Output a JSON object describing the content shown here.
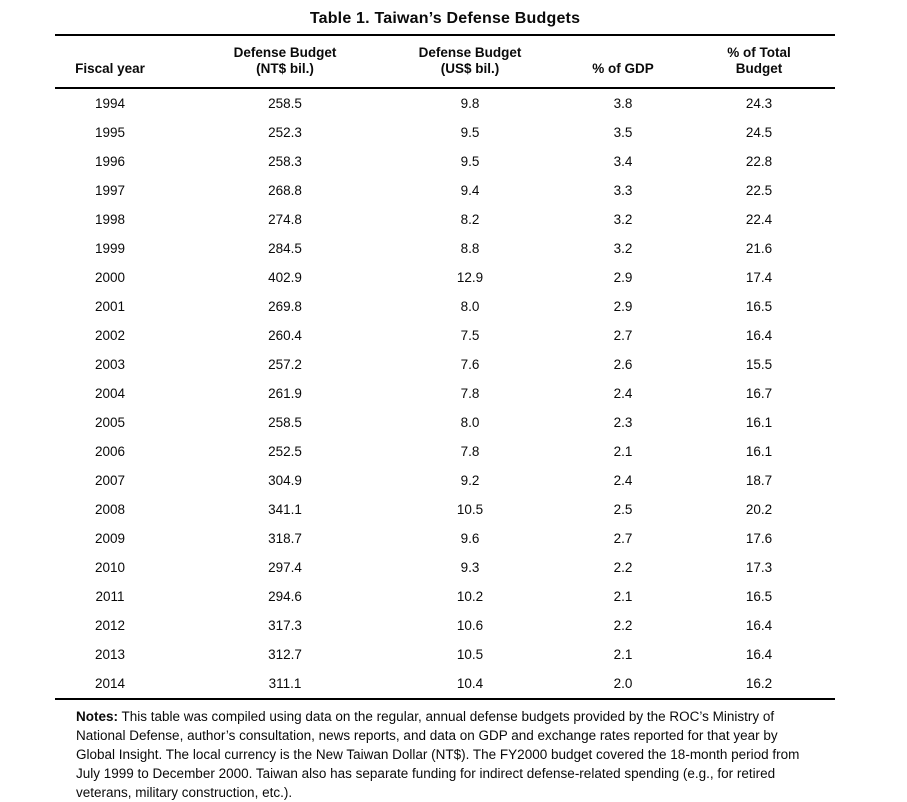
{
  "title": "Table 1. Taiwan’s Defense Budgets",
  "table": {
    "columns": [
      "Fiscal year",
      "Defense Budget\n(NT$ bil.)",
      "Defense Budget\n(US$ bil.)",
      "% of GDP",
      "% of Total\nBudget"
    ],
    "rows": [
      [
        "1994",
        "258.5",
        "9.8",
        "3.8",
        "24.3"
      ],
      [
        "1995",
        "252.3",
        "9.5",
        "3.5",
        "24.5"
      ],
      [
        "1996",
        "258.3",
        "9.5",
        "3.4",
        "22.8"
      ],
      [
        "1997",
        "268.8",
        "9.4",
        "3.3",
        "22.5"
      ],
      [
        "1998",
        "274.8",
        "8.2",
        "3.2",
        "22.4"
      ],
      [
        "1999",
        "284.5",
        "8.8",
        "3.2",
        "21.6"
      ],
      [
        "2000",
        "402.9",
        "12.9",
        "2.9",
        "17.4"
      ],
      [
        "2001",
        "269.8",
        "8.0",
        "2.9",
        "16.5"
      ],
      [
        "2002",
        "260.4",
        "7.5",
        "2.7",
        "16.4"
      ],
      [
        "2003",
        "257.2",
        "7.6",
        "2.6",
        "15.5"
      ],
      [
        "2004",
        "261.9",
        "7.8",
        "2.4",
        "16.7"
      ],
      [
        "2005",
        "258.5",
        "8.0",
        "2.3",
        "16.1"
      ],
      [
        "2006",
        "252.5",
        "7.8",
        "2.1",
        "16.1"
      ],
      [
        "2007",
        "304.9",
        "9.2",
        "2.4",
        "18.7"
      ],
      [
        "2008",
        "341.1",
        "10.5",
        "2.5",
        "20.2"
      ],
      [
        "2009",
        "318.7",
        "9.6",
        "2.7",
        "17.6"
      ],
      [
        "2010",
        "297.4",
        "9.3",
        "2.2",
        "17.3"
      ],
      [
        "2011",
        "294.6",
        "10.2",
        "2.1",
        "16.5"
      ],
      [
        "2012",
        "317.3",
        "10.6",
        "2.2",
        "16.4"
      ],
      [
        "2013",
        "312.7",
        "10.5",
        "2.1",
        "16.4"
      ],
      [
        "2014",
        "311.1",
        "10.4",
        "2.0",
        "16.2"
      ]
    ]
  },
  "notes": {
    "label": "Notes:",
    "text": " This table was compiled using data on the regular, annual defense budgets provided by the ROC’s Ministry of National Defense, author’s consultation, news reports, and data on GDP and exchange rates reported for that year by Global Insight. The local currency is the New Taiwan Dollar (NT$). The FY2000 budget covered the 18-month period from July 1999 to December 2000. Taiwan also has separate funding for indirect defense-related spending (e.g., for retired veterans, military construction, etc.)."
  }
}
